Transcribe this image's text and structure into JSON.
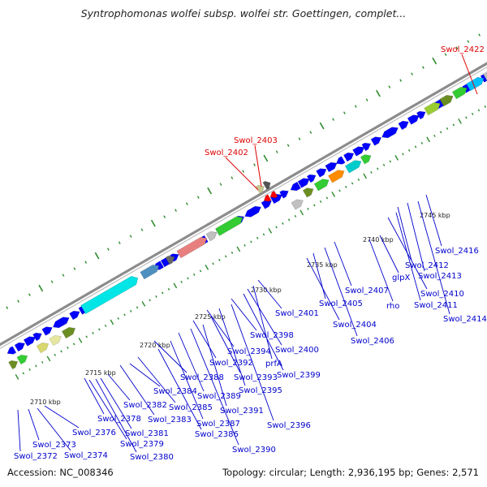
{
  "title": "Syntrophomonas wolfei subsp. wolfei str. Goettingen, complet...",
  "footer": {
    "accession": "Accession: NC_008346",
    "summary": "Topology: circular; Length: 2,936,195 bp; Genes: 2,571"
  },
  "colors": {
    "backbone": "#8c8c8c",
    "forward_strand": "#0000ff",
    "label_blue": "#0000cc",
    "label_red": "#dd0000",
    "ruler_tick": "#2e8b2e",
    "highlight_arrow": "#ff0000"
  },
  "ruler": [
    {
      "label": "2710 kbp"
    },
    {
      "label": "2715 kbp"
    },
    {
      "label": "2720 kbp"
    },
    {
      "label": "2725 kbp"
    },
    {
      "label": "2730 kbp"
    },
    {
      "label": "2735 kbp"
    },
    {
      "label": "2740 kbp"
    },
    {
      "label": "2745 kbp"
    }
  ],
  "highlighted_genes": [
    "Swol_2402",
    "Swol_2403",
    "Swol_2422"
  ],
  "gene_labels": [
    "Swol_2372",
    "Swol_2373",
    "Swol_2374",
    "Swol_2376",
    "Swol_2378",
    "Swol_2379",
    "Swol_2380",
    "Swol_2381",
    "Swol_2382",
    "Swol_2383",
    "Swol_2384",
    "Swol_2385",
    "Swol_2386",
    "Swol_2387",
    "Swol_2388",
    "Swol_2389",
    "Swol_2390",
    "Swol_2391",
    "Swol_2392",
    "Swol_2393",
    "Swol_2394",
    "Swol_2395",
    "Swol_2396",
    "Swol_2398",
    "Swol_2399",
    "Swol_2400",
    "prfA",
    "Swol_2401",
    "Swol_2404",
    "Swol_2405",
    "Swol_2406",
    "Swol_2407",
    "rho",
    "glpX",
    "Swol_2410",
    "Swol_2411",
    "Swol_2412",
    "Swol_2413",
    "Swol_2414",
    "Swol_2416"
  ]
}
